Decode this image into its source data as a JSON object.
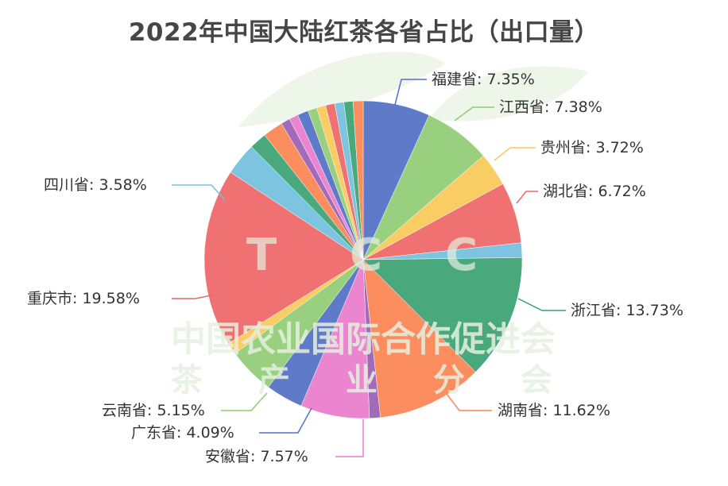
{
  "chart_data": {
    "type": "pie",
    "title": "2022年中国大陆红茶各省占比（出口量）",
    "start_angle": "12 o'clock, clockwise",
    "palette": [
      "#5470c6",
      "#91cc75",
      "#fac858",
      "#ee6666",
      "#73c0de",
      "#3ba272",
      "#fc8452",
      "#9a60b4",
      "#ea7ccc"
    ],
    "slices": [
      {
        "name": "福建省",
        "value": 7.35,
        "label": "福建省: 7.35%"
      },
      {
        "name": "江西省",
        "value": 7.38,
        "label": "江西省: 7.38%"
      },
      {
        "name": "贵州省",
        "value": 3.72,
        "label": "贵州省: 3.72%"
      },
      {
        "name": "湖北省",
        "value": 6.72,
        "label": "湖北省: 6.72%"
      },
      {
        "name": "",
        "value": 1.6
      },
      {
        "name": "浙江省",
        "value": 13.73,
        "label": "浙江省: 13.73%"
      },
      {
        "name": "湖南省",
        "value": 11.62,
        "label": "湖南省: 11.62%"
      },
      {
        "name": "",
        "value": 1.2
      },
      {
        "name": "安徽省",
        "value": 7.57,
        "label": "安徽省: 7.57%"
      },
      {
        "name": "广东省",
        "value": 4.09,
        "label": "广东省: 4.09%"
      },
      {
        "name": "云南省",
        "value": 5.15,
        "label": "云南省: 5.15%"
      },
      {
        "name": "",
        "value": 1.3
      },
      {
        "name": "重庆市",
        "value": 19.58,
        "label": "重庆市: 19.58%"
      },
      {
        "name": "四川省",
        "value": 3.58,
        "label": "四川省: 3.58%"
      },
      {
        "name": "",
        "value": 1.9
      },
      {
        "name": "",
        "value": 2.2
      },
      {
        "name": "",
        "value": 1.0
      },
      {
        "name": "",
        "value": 1.0
      },
      {
        "name": "",
        "value": 1.2
      },
      {
        "name": "",
        "value": 1.0
      },
      {
        "name": "",
        "value": 1.0
      },
      {
        "name": "",
        "value": 1.0
      },
      {
        "name": "",
        "value": 1.0
      },
      {
        "name": "",
        "value": 1.0
      },
      {
        "name": "",
        "value": 1.1
      }
    ]
  },
  "watermark": {
    "line1": "中国农业国际合作促进会",
    "line2": [
      "茶",
      "产",
      "业",
      "分",
      "会"
    ],
    "letters": [
      "T",
      "C",
      "C"
    ]
  }
}
